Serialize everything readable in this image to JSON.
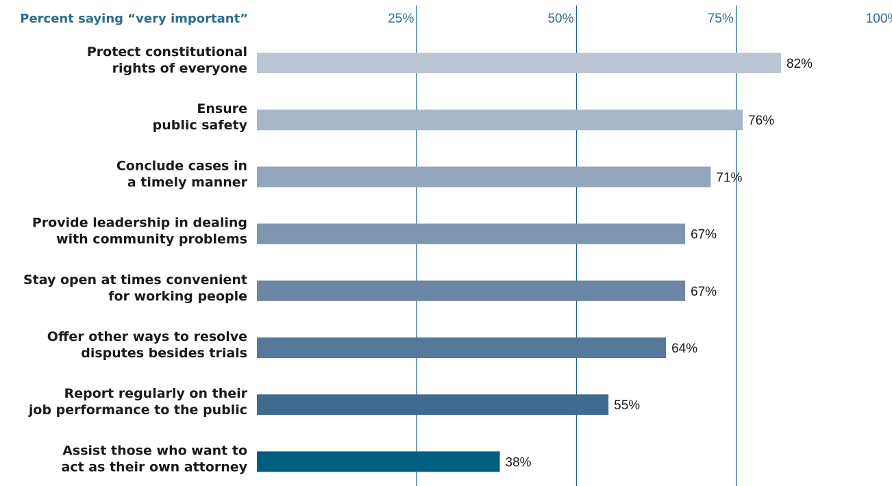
{
  "chart_data": {
    "type": "bar",
    "orientation": "horizontal",
    "header_label": "Percent saying “very important”",
    "categories": [
      [
        "Protect constitutional",
        "rights of everyone"
      ],
      [
        "Ensure",
        "public safety"
      ],
      [
        "Conclude cases in",
        "a timely manner"
      ],
      [
        "Provide leadership in dealing",
        "with community problems"
      ],
      [
        "Stay open at times convenient",
        "for working people"
      ],
      [
        "Offer other ways to resolve",
        "disputes besides trials"
      ],
      [
        "Report regularly on their",
        "job performance to the public"
      ],
      [
        "Assist those who want to",
        "act as their own attorney"
      ]
    ],
    "values": [
      82,
      76,
      71,
      67,
      67,
      64,
      55,
      38
    ],
    "value_labels": [
      "82%",
      "76%",
      "71%",
      "67%",
      "67%",
      "64%",
      "55%",
      "38%"
    ],
    "x_ticks": [
      25,
      50,
      75,
      100
    ],
    "x_tick_labels": [
      "25%",
      "50%",
      "75%",
      "100%"
    ],
    "xlim": [
      0,
      100
    ],
    "grid": true,
    "colors": {
      "bars": [
        "#bcc5d3",
        "#a7b6c8",
        "#93a6bd",
        "#7f96b1",
        "#6a87a5",
        "#56789b",
        "#3f6b8f",
        "#005e80"
      ],
      "gridline": "#1f5f82",
      "accent_text": "#2b6e8f"
    }
  }
}
